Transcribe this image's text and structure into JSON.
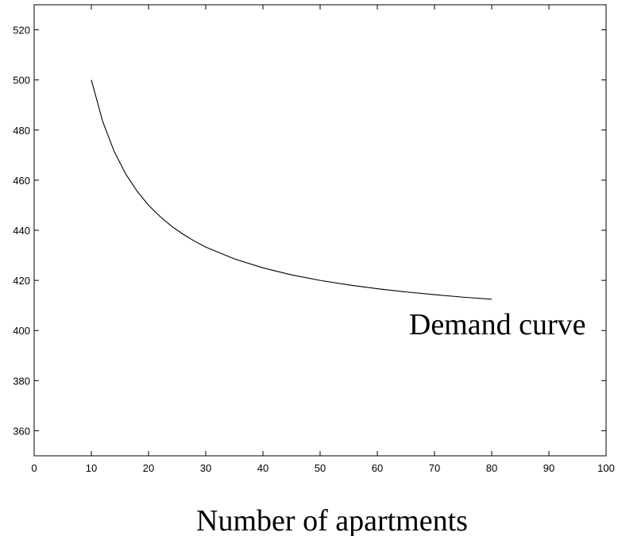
{
  "chart_data": {
    "type": "line",
    "title": "",
    "xlabel": "Number of apartments",
    "ylabel": "",
    "xlim": [
      0,
      100
    ],
    "ylim": [
      350,
      530
    ],
    "xticks": [
      0,
      10,
      20,
      30,
      40,
      50,
      60,
      70,
      80,
      90,
      100
    ],
    "xtick_labels": [
      "0",
      "10",
      "20",
      "30",
      "40",
      "50",
      "60",
      "70",
      "80",
      "90",
      "100"
    ],
    "yticks": [
      360,
      380,
      400,
      420,
      440,
      460,
      480,
      500,
      520
    ],
    "ytick_labels": [
      "360",
      "380",
      "400",
      "420",
      "440",
      "460",
      "480",
      "500",
      "520"
    ],
    "grid": false,
    "series": [
      {
        "x": [
          10,
          12,
          14,
          16,
          18,
          20,
          22,
          24,
          26,
          28,
          30,
          35,
          40,
          45,
          50,
          55,
          60,
          65,
          70,
          75,
          80
        ],
        "y": [
          500,
          483.3,
          471.4,
          462.5,
          455.6,
          450,
          445.5,
          441.7,
          438.5,
          435.7,
          433.3,
          428.6,
          425,
          422.2,
          420,
          418.2,
          416.7,
          415.4,
          414.3,
          413.3,
          412.5
        ]
      }
    ],
    "annotations": [
      {
        "text": "Demand curve",
        "x": 81,
        "y": 403
      }
    ]
  }
}
